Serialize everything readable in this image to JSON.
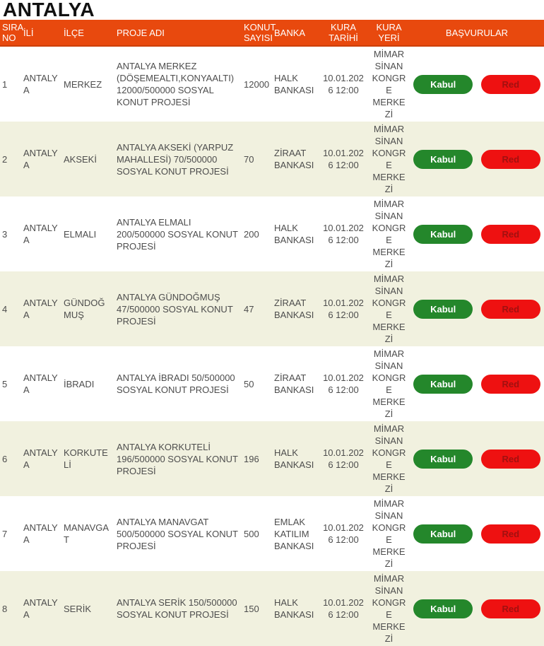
{
  "page_title": "ANTALYA",
  "colors": {
    "header_bg": "#e8490e",
    "header_border": "#cc3f09",
    "row_alt_bg": "#f1f1df",
    "accept_bg": "#24872b",
    "reject_bg": "#ee1111",
    "reject_text": "#a21010"
  },
  "table": {
    "headers": {
      "sira_no": "SIRA NO",
      "ili": "İLİ",
      "ilce": "İLÇE",
      "proje_adi": "PROJE ADI",
      "konut_sayisi": "KONUT SAYISI",
      "banka": "BANKA",
      "kura_tarihi": "KURA TARİHİ",
      "kura_yeri": "KURA YERİ",
      "basvurular": "BAŞVURULAR"
    },
    "buttons": {
      "accept": "Kabul",
      "reject": "Red"
    },
    "rows": [
      {
        "no": "1",
        "il": "ANTALYA",
        "ilce": "MERKEZ",
        "proje": "ANTALYA MERKEZ (DÖŞEMEALTI,KONYAALTI) 12000/500000 SOSYAL KONUT PROJESİ",
        "konut": "12000",
        "banka": "HALK BANKASI",
        "tarih": "10.01.2026 12:00",
        "yer": "MİMAR SİNAN KONGRE MERKEZİ"
      },
      {
        "no": "2",
        "il": "ANTALYA",
        "ilce": "AKSEKİ",
        "proje": "ANTALYA AKSEKİ (YARPUZ MAHALLESİ) 70/500000 SOSYAL KONUT PROJESİ",
        "konut": "70",
        "banka": "ZİRAAT BANKASI",
        "tarih": "10.01.2026 12:00",
        "yer": "MİMAR SİNAN KONGRE MERKEZİ"
      },
      {
        "no": "3",
        "il": "ANTALYA",
        "ilce": "ELMALI",
        "proje": "ANTALYA ELMALI 200/500000 SOSYAL KONUT PROJESİ",
        "konut": "200",
        "banka": "HALK BANKASI",
        "tarih": "10.01.2026 12:00",
        "yer": "MİMAR SİNAN KONGRE MERKEZİ"
      },
      {
        "no": "4",
        "il": "ANTALYA",
        "ilce": "GÜNDOĞMUŞ",
        "proje": "ANTALYA GÜNDOĞMUŞ 47/500000 SOSYAL KONUT PROJESİ",
        "konut": "47",
        "banka": "ZİRAAT BANKASI",
        "tarih": "10.01.2026 12:00",
        "yer": "MİMAR SİNAN KONGRE MERKEZİ"
      },
      {
        "no": "5",
        "il": "ANTALYA",
        "ilce": "İBRADI",
        "proje": "ANTALYA İBRADI 50/500000 SOSYAL KONUT PROJESİ",
        "konut": "50",
        "banka": "ZİRAAT BANKASI",
        "tarih": "10.01.2026 12:00",
        "yer": "MİMAR SİNAN KONGRE MERKEZİ"
      },
      {
        "no": "6",
        "il": "ANTALYA",
        "ilce": "KORKUTELİ",
        "proje": "ANTALYA KORKUTELİ 196/500000 SOSYAL KONUT PROJESİ",
        "konut": "196",
        "banka": "HALK BANKASI",
        "tarih": "10.01.2026 12:00",
        "yer": "MİMAR SİNAN KONGRE MERKEZİ"
      },
      {
        "no": "7",
        "il": "ANTALYA",
        "ilce": "MANAVGAT",
        "proje": "ANTALYA MANAVGAT 500/500000 SOSYAL KONUT PROJESİ",
        "konut": "500",
        "banka": "EMLAK KATILIM BANKASI",
        "tarih": "10.01.2026 12:00",
        "yer": "MİMAR SİNAN KONGRE MERKEZİ"
      },
      {
        "no": "8",
        "il": "ANTALYA",
        "ilce": "SERİK",
        "proje": "ANTALYA SERİK 150/500000 SOSYAL KONUT PROJESİ",
        "konut": "150",
        "banka": "HALK BANKASI",
        "tarih": "10.01.2026 12:00",
        "yer": "MİMAR SİNAN KONGRE MERKEZİ"
      }
    ]
  }
}
